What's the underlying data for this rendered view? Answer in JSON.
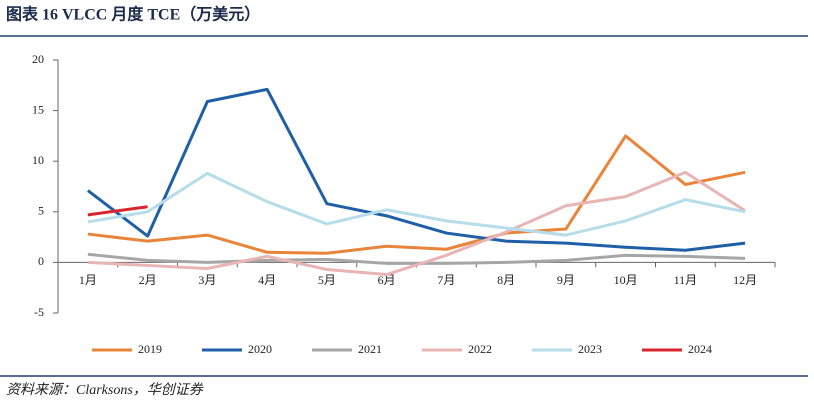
{
  "chart_data": {
    "type": "line",
    "title": "图表 16 VLCC 月度 TCE（万美元）",
    "source": "资料来源：Clarksons，华创证券",
    "categories": [
      "1月",
      "2月",
      "3月",
      "4月",
      "5月",
      "6月",
      "7月",
      "8月",
      "9月",
      "10月",
      "11月",
      "12月"
    ],
    "ylim": [
      -5,
      20
    ],
    "yticks": [
      -5,
      0,
      5,
      10,
      15,
      20
    ],
    "grid": false,
    "series": [
      {
        "name": "2019",
        "color": "#e8853a",
        "values": [
          2.8,
          2.1,
          2.7,
          1.0,
          0.9,
          1.6,
          1.3,
          2.9,
          3.3,
          12.5,
          7.7,
          8.9
        ]
      },
      {
        "name": "2020",
        "color": "#1f5fa8",
        "values": [
          7.1,
          2.6,
          15.9,
          17.1,
          5.8,
          4.6,
          2.9,
          2.1,
          1.9,
          1.5,
          1.2,
          1.9
        ]
      },
      {
        "name": "2021",
        "color": "#a6a6a6",
        "values": [
          0.8,
          0.2,
          0.0,
          0.2,
          0.3,
          -0.1,
          -0.1,
          0.0,
          0.2,
          0.7,
          0.6,
          0.4
        ]
      },
      {
        "name": "2022",
        "color": "#e8b4b4",
        "values": [
          0.0,
          -0.3,
          -0.6,
          0.6,
          -0.7,
          -1.2,
          0.7,
          3.0,
          5.6,
          6.5,
          8.9,
          5.1
        ]
      },
      {
        "name": "2023",
        "color": "#b7dcea",
        "values": [
          4.0,
          5.0,
          8.8,
          6.0,
          3.8,
          5.2,
          4.1,
          3.4,
          2.7,
          4.1,
          6.2,
          5.0
        ]
      },
      {
        "name": "2024",
        "color": "#d9262e",
        "values": [
          4.7,
          5.5,
          null,
          null,
          null,
          null,
          null,
          null,
          null,
          null,
          null,
          null
        ]
      }
    ]
  }
}
